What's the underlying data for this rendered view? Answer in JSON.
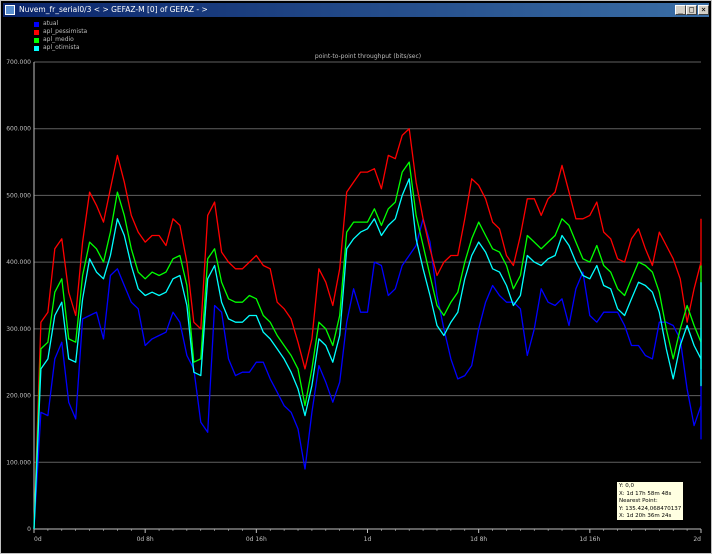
{
  "window": {
    "title": "Nuvem_fr_serial0/3 < > GEFAZ-M [0] of GEFAZ - >",
    "minimize_label": "_",
    "maximize_label": "□",
    "close_label": "×"
  },
  "colors": {
    "background": "#000000",
    "grid": "#606060",
    "axis_text": "#c0c0c0"
  },
  "tooltip": {
    "lines": [
      "Y: 0,0",
      "X: 1d 17h 58m 48s",
      "Nearest Point:",
      "Y: 135.424,0684701372",
      "X: 1d 20h 36m 24s"
    ]
  },
  "chart_data": {
    "type": "line",
    "title": "point-to-point throughput (bits/sec)",
    "ylim": [
      0,
      700000
    ],
    "yticks": [
      0,
      100000,
      200000,
      300000,
      400000,
      500000,
      600000,
      700000
    ],
    "ytick_labels": [
      "0",
      "100.000",
      "200.000",
      "300.000",
      "400.000",
      "500.000",
      "600.000",
      "700.000"
    ],
    "xlim": [
      0,
      48
    ],
    "xticks": [
      0,
      8,
      16,
      24,
      32,
      40,
      48
    ],
    "xtick_labels": [
      "0d",
      "0d 8h",
      "0d 16h",
      "1d",
      "1d 8h",
      "1d 16h",
      "2d"
    ],
    "grid": true,
    "legend_position": "top-left",
    "x_step_hours": 0.5,
    "series": [
      {
        "name": "atual",
        "color": "#0000ff",
        "values": [
          0,
          175000,
          170000,
          255000,
          280000,
          190000,
          165000,
          315000,
          320000,
          325000,
          285000,
          380000,
          390000,
          365000,
          340000,
          330000,
          275000,
          285000,
          290000,
          295000,
          325000,
          310000,
          260000,
          240000,
          160000,
          145000,
          335000,
          325000,
          255000,
          230000,
          235000,
          235000,
          250000,
          250000,
          225000,
          205000,
          185000,
          175000,
          150000,
          90000,
          175000,
          245000,
          220000,
          190000,
          220000,
          310000,
          360000,
          325000,
          325000,
          400000,
          395000,
          350000,
          360000,
          395000,
          410000,
          425000,
          465000,
          430000,
          350000,
          300000,
          255000,
          225000,
          230000,
          245000,
          300000,
          340000,
          365000,
          350000,
          340000,
          340000,
          330000,
          260000,
          300000,
          360000,
          340000,
          335000,
          345000,
          305000,
          360000,
          385000,
          320000,
          310000,
          325000,
          325000,
          325000,
          305000,
          275000,
          275000,
          260000,
          255000,
          310000,
          310000,
          305000,
          285000,
          210000,
          155000,
          185000,
          230000,
          285000,
          240000,
          150000,
          150000,
          135000,
          165000,
          250000,
          275000,
          235000,
          250000,
          235000,
          300000
        ]
      },
      {
        "name": "apl_pessimista",
        "color": "#ff0000",
        "values": [
          0,
          310000,
          325000,
          420000,
          435000,
          355000,
          320000,
          430000,
          505000,
          485000,
          460000,
          510000,
          560000,
          520000,
          470000,
          445000,
          430000,
          440000,
          440000,
          425000,
          465000,
          455000,
          400000,
          310000,
          300000,
          470000,
          490000,
          415000,
          400000,
          390000,
          390000,
          400000,
          410000,
          395000,
          390000,
          340000,
          330000,
          315000,
          280000,
          240000,
          285000,
          390000,
          370000,
          335000,
          390000,
          505000,
          520000,
          535000,
          535000,
          540000,
          510000,
          560000,
          555000,
          590000,
          600000,
          520000,
          465000,
          420000,
          380000,
          400000,
          410000,
          410000,
          465000,
          525000,
          515000,
          495000,
          460000,
          450000,
          410000,
          395000,
          440000,
          495000,
          495000,
          470000,
          495000,
          505000,
          545000,
          505000,
          465000,
          465000,
          470000,
          490000,
          445000,
          435000,
          405000,
          400000,
          435000,
          450000,
          420000,
          395000,
          445000,
          425000,
          405000,
          375000,
          310000,
          360000,
          400000,
          355000,
          320000,
          310000,
          300000,
          335000,
          300000,
          340000,
          400000,
          395000,
          390000,
          405000,
          465000
        ]
      },
      {
        "name": "apl_medio",
        "color": "#00ff00",
        "values": [
          0,
          270000,
          280000,
          355000,
          375000,
          285000,
          280000,
          380000,
          430000,
          420000,
          400000,
          445000,
          505000,
          470000,
          420000,
          385000,
          375000,
          385000,
          380000,
          385000,
          405000,
          410000,
          365000,
          250000,
          255000,
          405000,
          420000,
          370000,
          345000,
          340000,
          340000,
          350000,
          345000,
          320000,
          310000,
          290000,
          275000,
          260000,
          240000,
          185000,
          240000,
          310000,
          300000,
          275000,
          320000,
          445000,
          460000,
          460000,
          460000,
          480000,
          455000,
          480000,
          490000,
          535000,
          550000,
          470000,
          425000,
          380000,
          335000,
          320000,
          340000,
          355000,
          400000,
          435000,
          460000,
          440000,
          420000,
          415000,
          395000,
          360000,
          380000,
          440000,
          430000,
          420000,
          430000,
          440000,
          465000,
          455000,
          430000,
          405000,
          400000,
          425000,
          395000,
          385000,
          360000,
          350000,
          375000,
          400000,
          395000,
          385000,
          355000,
          300000,
          255000,
          300000,
          335000,
          305000,
          280000,
          255000,
          245000,
          240000,
          265000,
          335000,
          335000,
          340000,
          345000,
          350000,
          395000
        ]
      },
      {
        "name": "apl_otimista",
        "color": "#00ffff",
        "values": [
          0,
          240000,
          255000,
          320000,
          340000,
          255000,
          250000,
          345000,
          405000,
          385000,
          375000,
          410000,
          465000,
          440000,
          395000,
          360000,
          350000,
          355000,
          350000,
          355000,
          375000,
          380000,
          335000,
          235000,
          230000,
          375000,
          395000,
          340000,
          315000,
          310000,
          310000,
          320000,
          320000,
          295000,
          285000,
          270000,
          255000,
          235000,
          210000,
          170000,
          215000,
          285000,
          275000,
          250000,
          290000,
          420000,
          435000,
          445000,
          450000,
          465000,
          440000,
          455000,
          465000,
          500000,
          525000,
          435000,
          390000,
          350000,
          305000,
          290000,
          310000,
          325000,
          375000,
          410000,
          430000,
          415000,
          390000,
          385000,
          365000,
          335000,
          350000,
          410000,
          400000,
          395000,
          405000,
          410000,
          440000,
          425000,
          400000,
          380000,
          375000,
          395000,
          365000,
          360000,
          330000,
          320000,
          345000,
          370000,
          365000,
          355000,
          325000,
          270000,
          225000,
          275000,
          305000,
          275000,
          255000,
          235000,
          225000,
          215000,
          235000,
          305000,
          305000,
          305000,
          310000,
          320000,
          370000
        ]
      }
    ]
  }
}
